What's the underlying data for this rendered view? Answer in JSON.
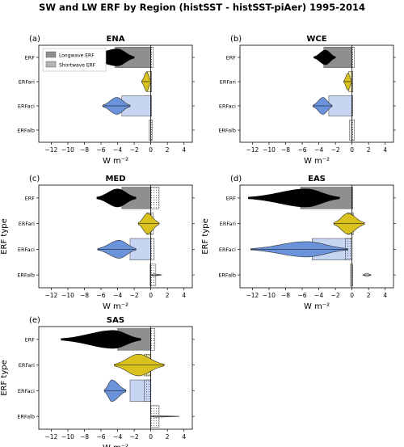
{
  "figure_title": "SW and LW ERF by Region (histSST - histSST-piAer) 1995-2014",
  "ylabel": "ERF type",
  "xlabel": "W m⁻²",
  "legend": {
    "longwave": "Longwave ERF",
    "shortwave": "Shortwave ERF"
  },
  "colors": {
    "ERF": "#000000",
    "ERFari": "#d9c11e",
    "ERFaci": "#6a93dc",
    "ERFalb": "#eeeeee",
    "erf_bar": "#8f8f8f",
    "ari_bar": "#f1e9a8",
    "aci_bar": "#c6d5f2",
    "alb_bar": "#e6e6e6"
  },
  "chart_data": [
    {
      "type": "bar",
      "panel": "(a)",
      "title": "ENA",
      "categories": [
        "ERF",
        "ERFari",
        "ERFaci",
        "ERFalb"
      ],
      "xticks": [
        -12,
        -10,
        -8,
        -6,
        -4,
        -2,
        0,
        2,
        4
      ],
      "xlim": [
        -13.5,
        5
      ],
      "series": [
        {
          "name": "Longwave ERF",
          "values": [
            0.3,
            0.1,
            0.1,
            0.2
          ]
        },
        {
          "name": "Shortwave ERF",
          "values": [
            -4.3,
            -0.5,
            -3.5,
            -0.2
          ]
        }
      ],
      "distributions": [
        {
          "category": "ERF",
          "mean": -4.0,
          "min": -8.0,
          "max": -2.0,
          "width": 0.35
        },
        {
          "category": "ERFari",
          "mean": -0.5,
          "min": -1.1,
          "max": 0.0,
          "width": 0.4
        },
        {
          "category": "ERFaci",
          "mean": -4.1,
          "min": -5.8,
          "max": -2.5,
          "width": 0.35
        }
      ]
    },
    {
      "type": "bar",
      "panel": "(b)",
      "title": "WCE",
      "categories": [
        "ERF",
        "ERFari",
        "ERFaci",
        "ERFalb"
      ],
      "xticks": [
        -12,
        -10,
        -8,
        -6,
        -4,
        -2,
        0,
        2,
        4
      ],
      "xlim": [
        -13.5,
        5
      ],
      "series": [
        {
          "name": "Longwave ERF",
          "values": [
            0.3,
            0.1,
            0.1,
            0.3
          ]
        },
        {
          "name": "Shortwave ERF",
          "values": [
            -3.4,
            -0.4,
            -2.8,
            -0.3
          ]
        }
      ],
      "distributions": [
        {
          "category": "ERF",
          "mean": -3.2,
          "min": -4.6,
          "max": -2.0,
          "width": 0.3
        },
        {
          "category": "ERFari",
          "mean": -0.5,
          "min": -1.0,
          "max": 0.0,
          "width": 0.35
        },
        {
          "category": "ERFaci",
          "mean": -3.5,
          "min": -4.7,
          "max": -2.4,
          "width": 0.35
        }
      ]
    },
    {
      "type": "bar",
      "panel": "(c)",
      "title": "MED",
      "categories": [
        "ERF",
        "ERFari",
        "ERFaci",
        "ERFalb"
      ],
      "xticks": [
        -12,
        -10,
        -8,
        -6,
        -4,
        -2,
        0,
        2,
        4
      ],
      "xlim": [
        -13.5,
        5
      ],
      "series": [
        {
          "name": "Longwave ERF",
          "values": [
            1.0,
            0.3,
            0.4,
            0.6
          ]
        },
        {
          "name": "Shortwave ERF",
          "values": [
            -3.5,
            -0.5,
            -2.5,
            -0.1
          ]
        }
      ],
      "distributions": [
        {
          "category": "ERF",
          "mean": -4.0,
          "min": -6.5,
          "max": -1.8,
          "width": 0.35
        },
        {
          "category": "ERFari",
          "mean": -0.4,
          "min": -1.5,
          "max": 1.0,
          "width": 0.4
        },
        {
          "category": "ERFaci",
          "mean": -3.8,
          "min": -6.4,
          "max": -1.8,
          "width": 0.35
        },
        {
          "category": "ERFalb",
          "mean": 0.3,
          "min": 0.0,
          "max": 1.3,
          "width": 0.04
        }
      ]
    },
    {
      "type": "bar",
      "panel": "(d)",
      "title": "EAS",
      "categories": [
        "ERF",
        "ERFari",
        "ERFaci",
        "ERFalb"
      ],
      "xticks": [
        -12,
        -10,
        -8,
        -6,
        -4,
        -2,
        0,
        2,
        4
      ],
      "xlim": [
        -13.5,
        5
      ],
      "series": [
        {
          "name": "Longwave ERF",
          "values": [
            0.1,
            0.2,
            -0.8,
            0.1
          ]
        },
        {
          "name": "Shortwave ERF",
          "values": [
            -6.2,
            -0.6,
            -4.8,
            -0.2
          ]
        }
      ],
      "distributions": [
        {
          "category": "ERF",
          "mean": -5.5,
          "min": -12.5,
          "max": -1.5,
          "width": 0.35
        },
        {
          "category": "ERFari",
          "mean": -0.5,
          "min": -2.2,
          "max": 1.5,
          "width": 0.4
        },
        {
          "category": "ERFaci",
          "mean": -5.5,
          "min": -12.2,
          "max": -0.5,
          "width": 0.3
        },
        {
          "category": "ERFalb",
          "mean": 1.8,
          "min": 1.3,
          "max": 2.3,
          "width": 0.06
        }
      ]
    },
    {
      "type": "bar",
      "panel": "(e)",
      "title": "SAS",
      "categories": [
        "ERF",
        "ERFari",
        "ERFaci",
        "ERFalb"
      ],
      "xticks": [
        -12,
        -10,
        -8,
        -6,
        -4,
        -2,
        0,
        2,
        4
      ],
      "xlim": [
        -13.5,
        5
      ],
      "series": [
        {
          "name": "Longwave ERF",
          "values": [
            0.5,
            -0.5,
            -0.8,
            1.0
          ]
        },
        {
          "name": "Shortwave ERF",
          "values": [
            -4.0,
            -0.8,
            -2.5,
            0.0
          ]
        }
      ],
      "distributions": [
        {
          "category": "ERF",
          "mean": -4.5,
          "min": -10.8,
          "max": -1.2,
          "width": 0.35
        },
        {
          "category": "ERFari",
          "mean": -1.5,
          "min": -4.4,
          "max": 1.6,
          "width": 0.42
        },
        {
          "category": "ERFaci",
          "mean": -4.7,
          "min": -5.6,
          "max": -3.0,
          "width": 0.42
        },
        {
          "category": "ERFalb",
          "mean": 0.5,
          "min": 0.0,
          "max": 3.4,
          "width": 0.03
        }
      ]
    }
  ]
}
